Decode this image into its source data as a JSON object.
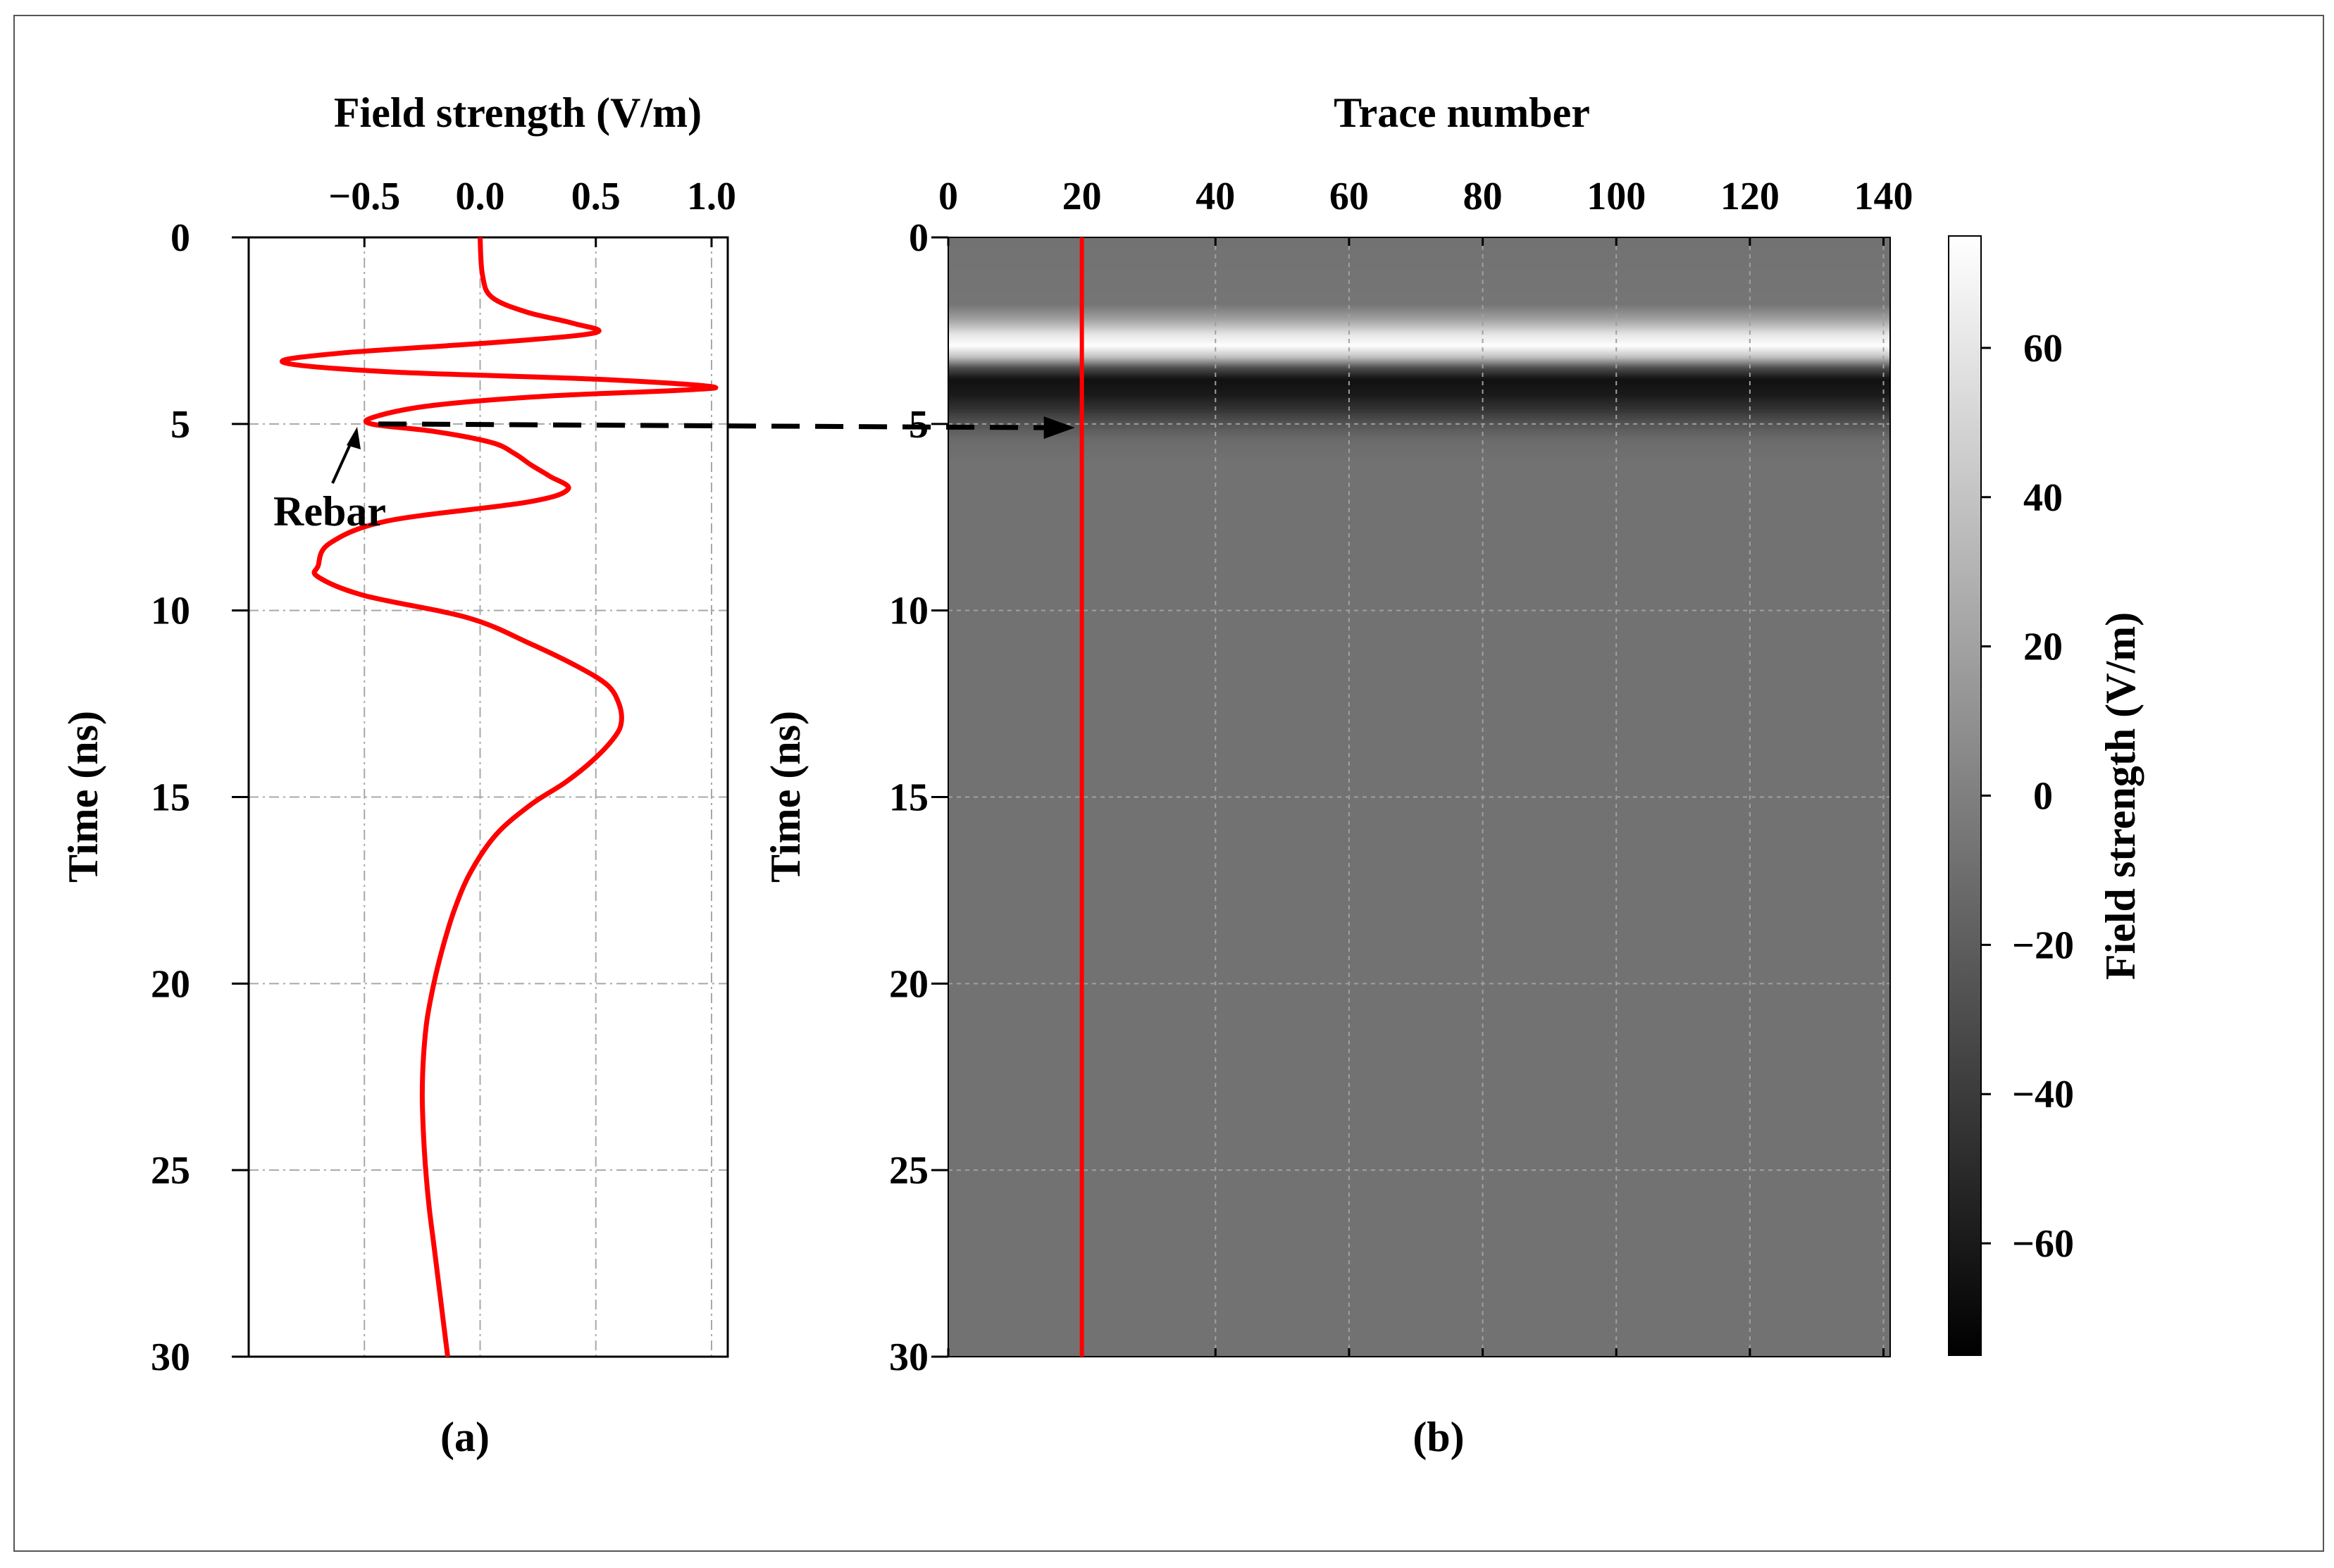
{
  "figure": {
    "panel_a_caption": "(a)",
    "panel_b_caption": "(b)",
    "annotation": "Rebar"
  },
  "chart_data": [
    {
      "type": "line",
      "panel": "(a)",
      "xlabel": "Field strength (V/m)",
      "ylabel": "Time (ns)",
      "xlim": [
        -1.0,
        1.07
      ],
      "ylim": [
        30,
        0
      ],
      "xticks": [
        -0.5,
        0.0,
        0.5,
        1.0
      ],
      "xtick_labels": [
        "−0.5",
        "0.0",
        "0.5",
        "1.0"
      ],
      "yticks": [
        0,
        5,
        10,
        15,
        20,
        25,
        30
      ],
      "ytick_labels": [
        "0",
        "5",
        "10",
        "15",
        "20",
        "25",
        "30"
      ],
      "grid": true,
      "series": [
        {
          "color": "#ff0000",
          "t": [
            0,
            1.0,
            1.6,
            2.0,
            2.3,
            2.55,
            2.8,
            3.1,
            3.35,
            3.6,
            3.8,
            4.0,
            4.1,
            4.25,
            4.5,
            4.8,
            5.0,
            5.2,
            5.5,
            5.8,
            6.1,
            6.4,
            6.75,
            7.1,
            7.6,
            8.2,
            8.8,
            9.1,
            9.6,
            10.2,
            10.9,
            11.5,
            12.0,
            12.5,
            13.0,
            13.4,
            14.0,
            14.6,
            15.2,
            16.0,
            17.0,
            18.0,
            19.0,
            20.0,
            21.0,
            22.0,
            23.0,
            24.0,
            25.0,
            26.0,
            27.0,
            28.0,
            29.0,
            30.0
          ],
          "v": [
            0.0,
            0.01,
            0.05,
            0.2,
            0.4,
            0.5,
            0.1,
            -0.6,
            -0.85,
            -0.4,
            0.5,
            1.0,
            0.85,
            0.3,
            -0.2,
            -0.45,
            -0.47,
            -0.2,
            0.05,
            0.15,
            0.22,
            0.3,
            0.38,
            0.2,
            -0.4,
            -0.65,
            -0.7,
            -0.7,
            -0.5,
            -0.05,
            0.22,
            0.42,
            0.55,
            0.6,
            0.61,
            0.58,
            0.49,
            0.37,
            0.22,
            0.07,
            -0.04,
            -0.11,
            -0.16,
            -0.2,
            -0.23,
            -0.245,
            -0.25,
            -0.245,
            -0.235,
            -0.22,
            -0.2,
            -0.18,
            -0.16,
            -0.14
          ]
        }
      ]
    },
    {
      "type": "heatmap",
      "panel": "(b)",
      "xlabel": "Trace number",
      "ylabel": "Time (ns)",
      "xlim": [
        0,
        141
      ],
      "ylim": [
        30,
        0
      ],
      "xticks": [
        0,
        20,
        40,
        60,
        80,
        100,
        120,
        140
      ],
      "yticks": [
        0,
        5,
        10,
        15,
        20,
        25,
        30
      ],
      "colormap": "gray",
      "colorbar": {
        "label": "Field strength (V/m)",
        "range": [
          -75,
          75
        ],
        "ticks": [
          60,
          40,
          20,
          0,
          -20,
          -40,
          -60
        ],
        "tick_labels": [
          "60",
          "40",
          "20",
          "0",
          "−20",
          "−40",
          "−60"
        ]
      },
      "background_value": -8,
      "direct_wave": {
        "t": [
          0,
          1.8,
          2.2,
          2.6,
          2.9,
          3.2,
          3.5,
          3.8,
          4.2,
          4.6,
          5.0,
          5.4,
          6.0
        ],
        "value": [
          -8,
          -6,
          20,
          60,
          75,
          40,
          -30,
          -65,
          -60,
          -45,
          -25,
          -12,
          -8
        ]
      },
      "selected_trace": {
        "trace": 20,
        "color": "#ff0000"
      },
      "arrow_time": 5.1,
      "grid": true
    }
  ]
}
